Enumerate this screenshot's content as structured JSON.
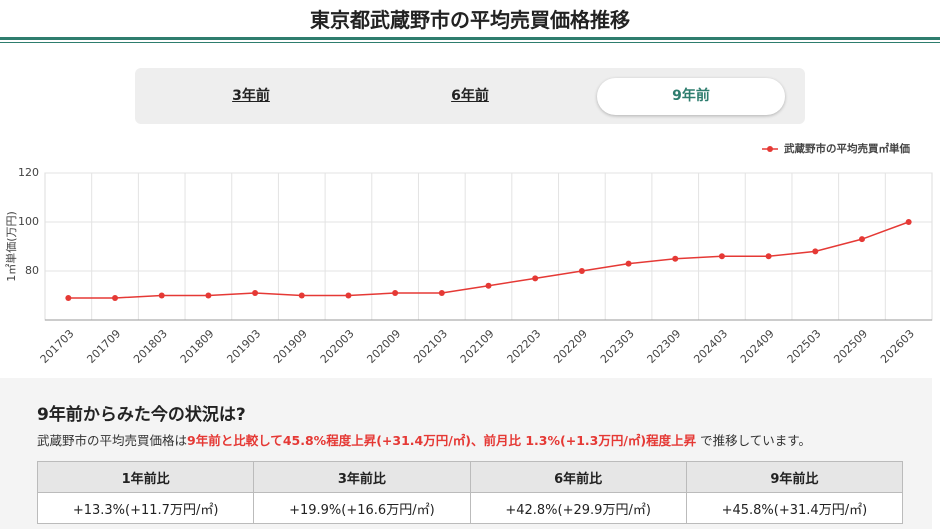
{
  "header": {
    "title": "東京都武蔵野市の平均売買価格推移"
  },
  "tabs": [
    "3年前",
    "6年前",
    "9年前"
  ],
  "chart_data": {
    "type": "line",
    "y_label": "1㎡単価(万円)",
    "categories": [
      "201703",
      "201709",
      "201803",
      "201809",
      "201903",
      "201909",
      "202003",
      "202009",
      "202103",
      "202109",
      "202203",
      "202209",
      "202303",
      "202309",
      "202403",
      "202409",
      "202503",
      "202509",
      "202603"
    ],
    "series": [
      {
        "name": "武蔵野市の平均売買㎡単価",
        "color": "#e53935",
        "values": [
          69,
          69,
          70,
          70,
          71,
          70,
          70,
          71,
          71,
          74,
          77,
          80,
          83,
          85,
          86,
          86,
          88,
          93,
          100
        ]
      }
    ],
    "ylim": [
      60,
      120
    ],
    "yticks": [
      80,
      100,
      120
    ],
    "grid": true,
    "legend": "top-right"
  },
  "summary": {
    "heading": "9年前からみた今の状況は?",
    "text": [
      "武蔵野市の平均売買価格は",
      "9年前と比較して45.8%程度上昇(+31.4万円/㎡)、前月比 1.3%(+1.3万円/㎡)程度上昇",
      " で推移しています。"
    ]
  },
  "table": {
    "headers": [
      "1年前比",
      "3年前比",
      "6年前比",
      "9年前比"
    ],
    "rows": [
      [
        "+13.3%(+11.7万円/㎡)",
        "+19.9%(+16.6万円/㎡)",
        "+42.8%(+29.9万円/㎡)",
        "+45.8%(+31.4万円/㎡)"
      ]
    ]
  }
}
